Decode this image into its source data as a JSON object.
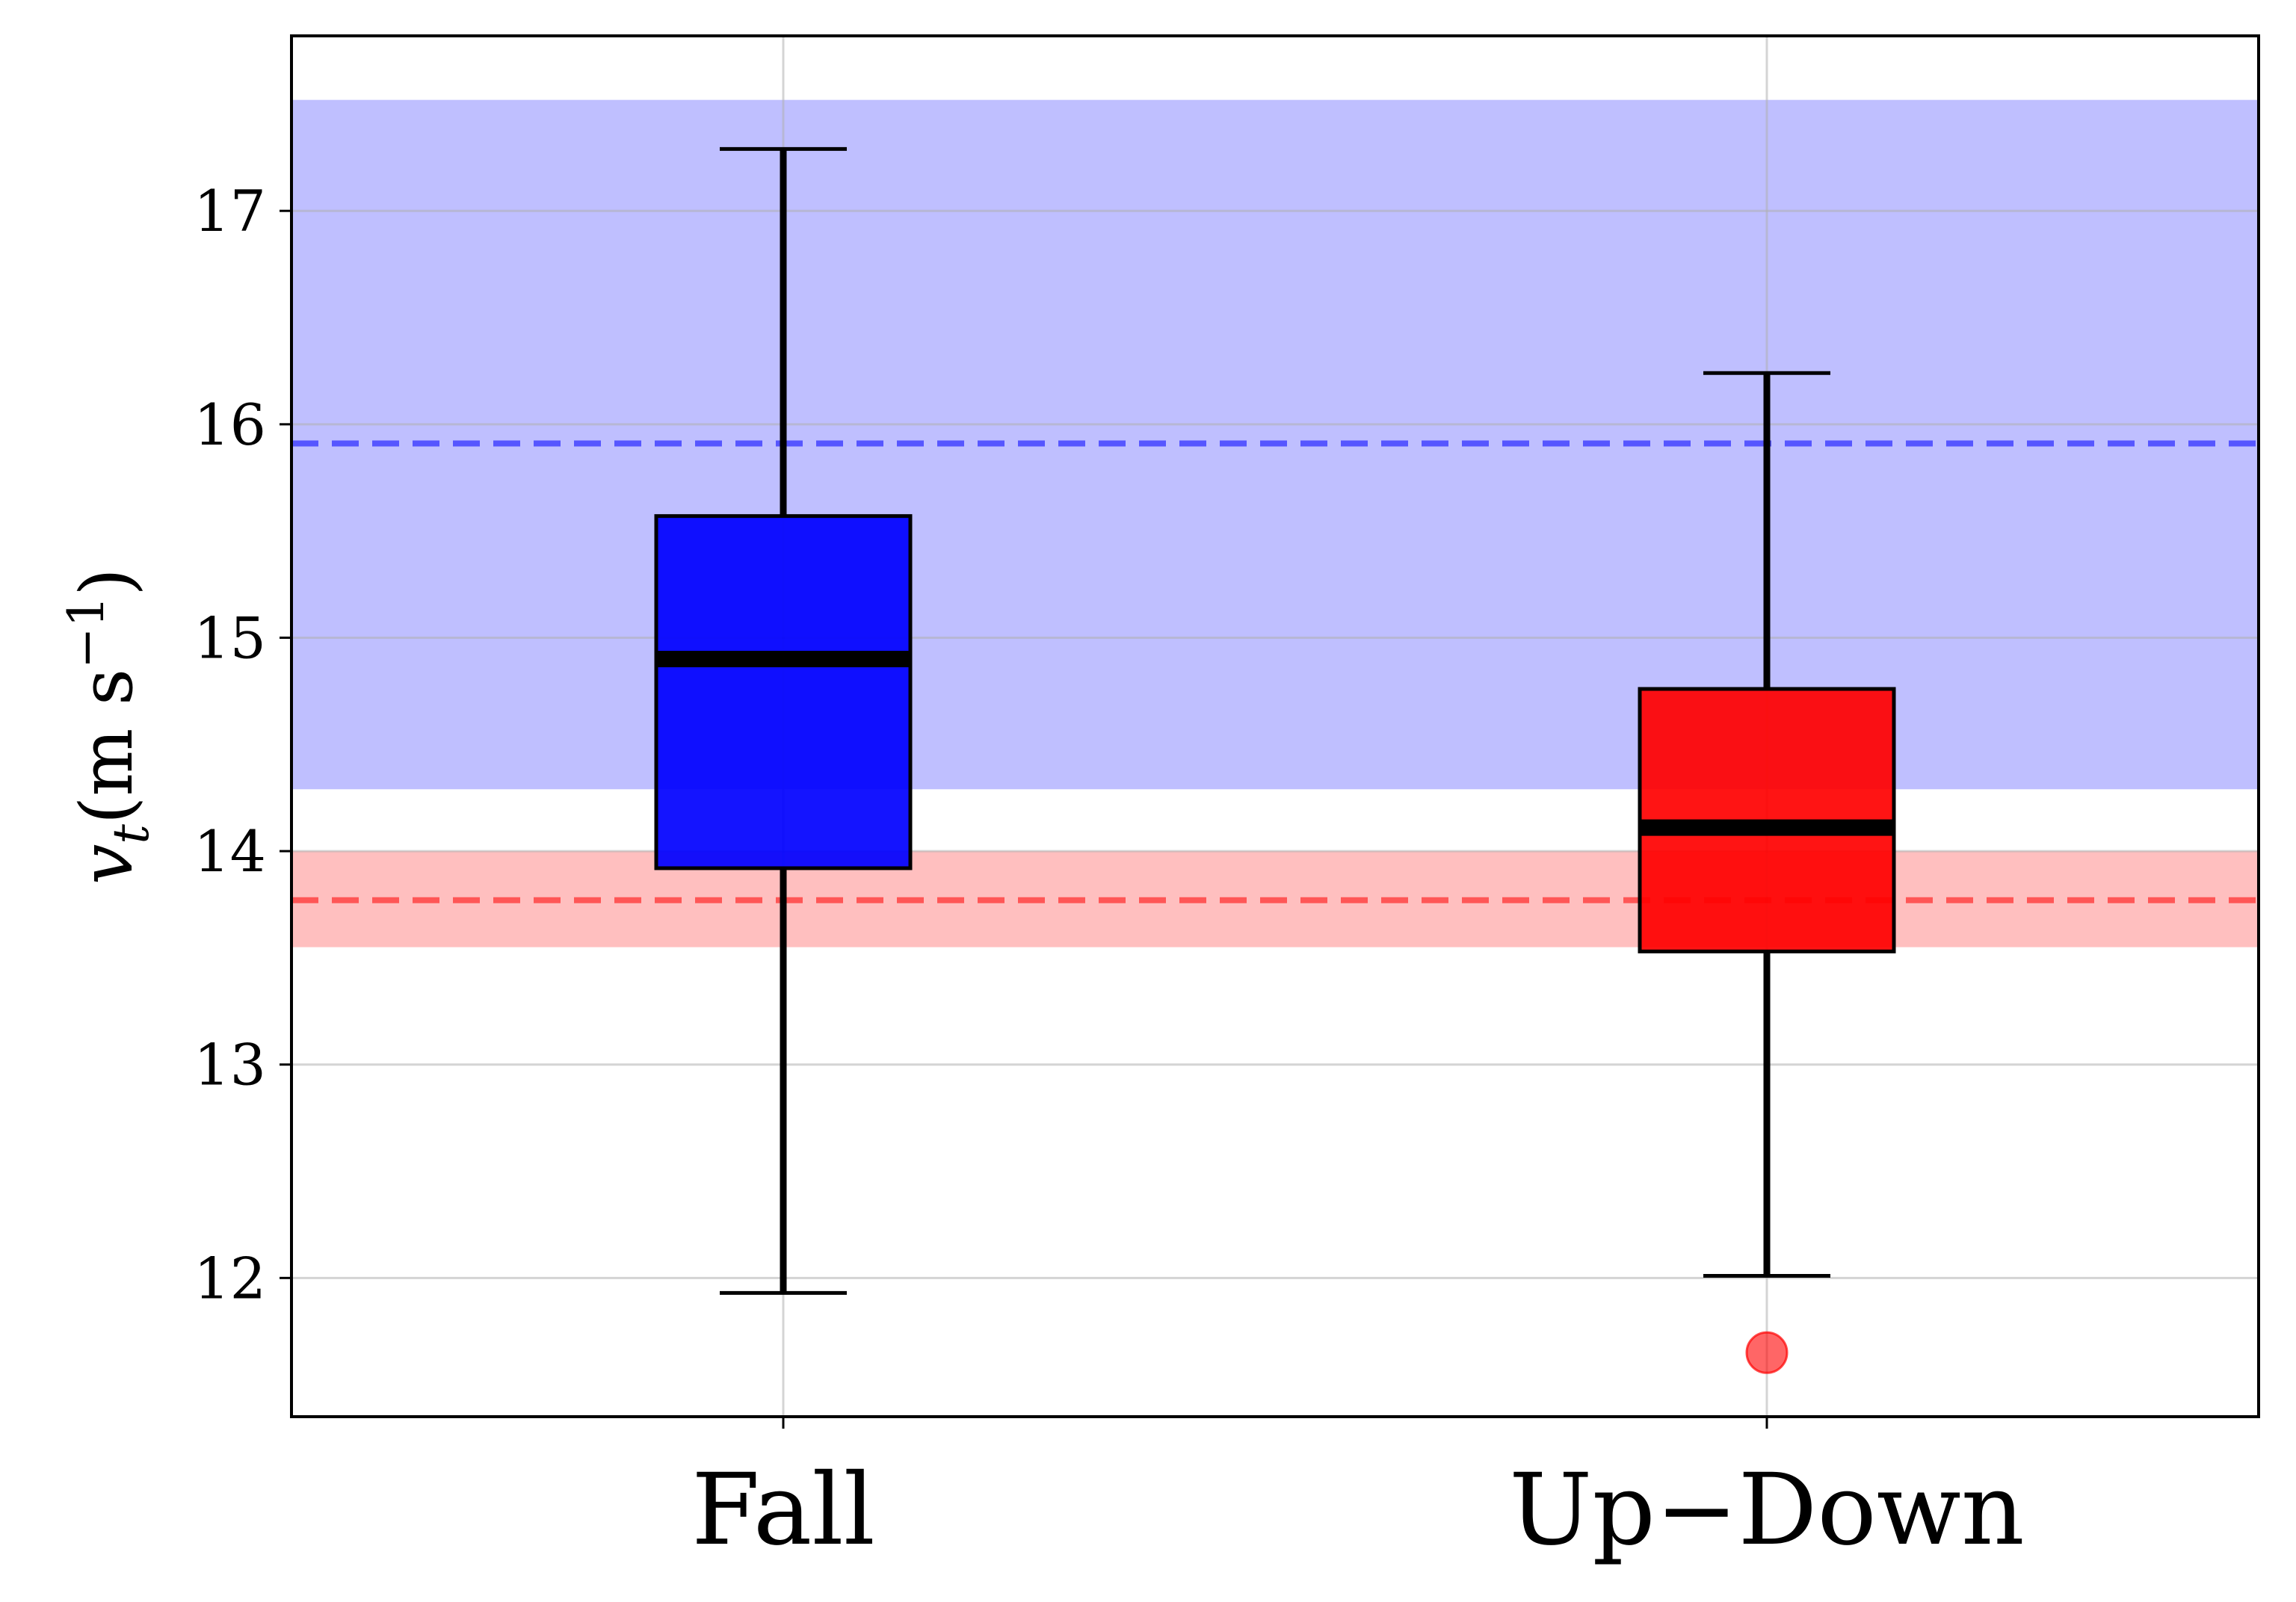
{
  "chart_data": {
    "type": "box",
    "title": "",
    "xlabel": "",
    "ylabel": {
      "symbol": "v",
      "subscript": "t",
      "unit": "(m s",
      "exponent": "−1",
      "close": ")"
    },
    "ylim": [
      11.35,
      17.82
    ],
    "yticks": [
      12,
      13,
      14,
      15,
      16,
      17
    ],
    "ytick_labels": [
      "12",
      "13",
      "14",
      "15",
      "16",
      "17"
    ],
    "grid": true,
    "categories": [
      "Fall",
      "Up−Down"
    ],
    "boxes": [
      {
        "category": "Fall",
        "color": "#0000ff",
        "whisker_low": 11.93,
        "q1": 13.92,
        "median": 14.9,
        "q3": 15.57,
        "whisker_high": 17.29,
        "outliers": []
      },
      {
        "category": "Up−Down",
        "color": "#ff0000",
        "whisker_low": 12.01,
        "q1": 13.53,
        "median": 14.11,
        "q3": 14.76,
        "whisker_high": 16.24,
        "outliers": [
          11.65
        ]
      }
    ],
    "reference_bands": [
      {
        "color": "#0000ff",
        "center": 15.91,
        "low": 14.29,
        "high": 17.52
      },
      {
        "color": "#ff0000",
        "center": 13.77,
        "low": 13.55,
        "high": 14.0
      }
    ]
  }
}
